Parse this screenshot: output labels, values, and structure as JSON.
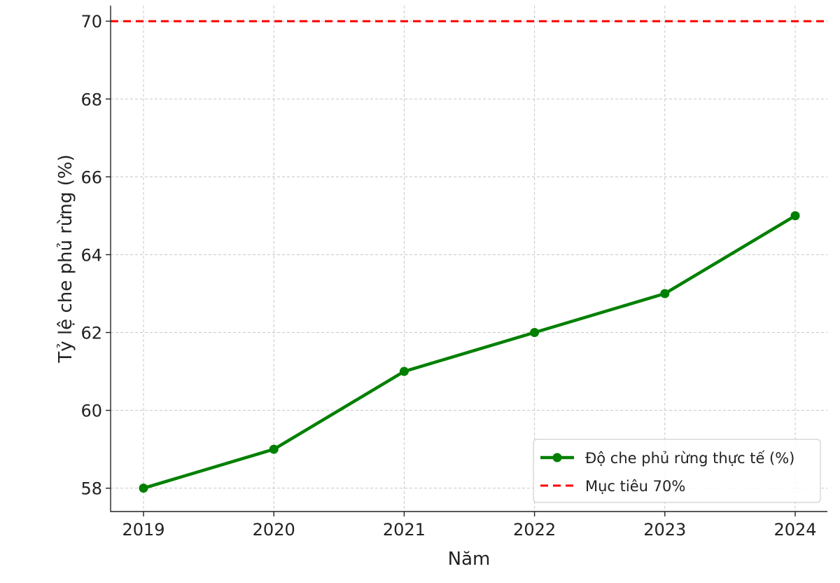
{
  "chart_data": {
    "type": "line",
    "title": "",
    "xlabel": "Năm",
    "ylabel": "Tỷ lệ che phủ rừng (%)",
    "categories": [
      "2019",
      "2020",
      "2021",
      "2022",
      "2023",
      "2024"
    ],
    "series": [
      {
        "name": "Độ che phủ rừng thực tế (%)",
        "values": [
          58,
          59,
          61,
          62,
          63,
          65
        ],
        "color": "#008000",
        "marker": "circle"
      }
    ],
    "reference_lines": [
      {
        "name": "Mục tiêu 70%",
        "value": 70,
        "color": "#ff0000",
        "style": "dashed"
      }
    ],
    "yticks": [
      58,
      60,
      62,
      64,
      66,
      68,
      70
    ],
    "ylim": [
      57.4,
      70.4
    ],
    "grid": true,
    "legend_position": "bottom-right"
  }
}
